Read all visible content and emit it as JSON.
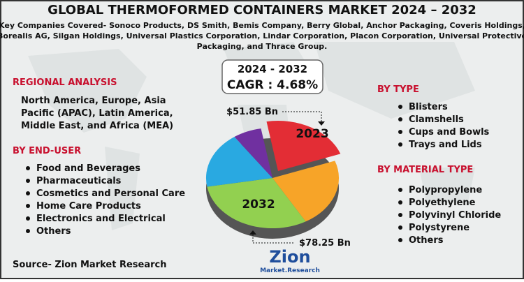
{
  "header": {
    "title": "GLOBAL THERMOFORMED CONTAINERS MARKET 2024 – 2032",
    "subtitle_lines": [
      "Key Companies Covered- Sonoco Products, DS Smith, Bemis Company, Berry Global, Anchor Packaging, Coveris Holdings,",
      "Borealis AG, Silgan Holdings, Universal Plastics Corporation, Lindar Corporation, Placon Corporation, Universal Protective",
      "Packaging, and Thrace Group."
    ]
  },
  "cagr": {
    "period": "2024 - 2032",
    "label": "CAGR : 4.68%"
  },
  "market": {
    "start_year": "2023",
    "start_value": "$51.85 Bn",
    "end_year": "2032",
    "end_value": "$78.25 Bn"
  },
  "regional": {
    "heading": "REGIONAL ANALYSIS",
    "lines": [
      "North America, Europe, Asia",
      "Pacific (APAC), Latin America,",
      "Middle East, and Africa (MEA)"
    ]
  },
  "end_user": {
    "heading": "BY END-USER",
    "items": [
      "Food and Beverages",
      "Pharmaceuticals",
      "Cosmetics and Personal Care",
      "Home Care Products",
      "Electronics and Electrical",
      "Others"
    ]
  },
  "by_type": {
    "heading": "BY TYPE",
    "items": [
      "Blisters",
      "Clamshells",
      "Cups and Bowls",
      "Trays and Lids"
    ]
  },
  "material": {
    "heading": "BY MATERIAL TYPE",
    "items": [
      "Polypropylene",
      "Polyethylene",
      "Polyvinyl Chloride",
      "Polystyrene",
      "Others"
    ]
  },
  "footer": {
    "source": "Source- Zion Market Research",
    "logo_main": "Zion",
    "logo_sub": "Market.Research"
  }
}
